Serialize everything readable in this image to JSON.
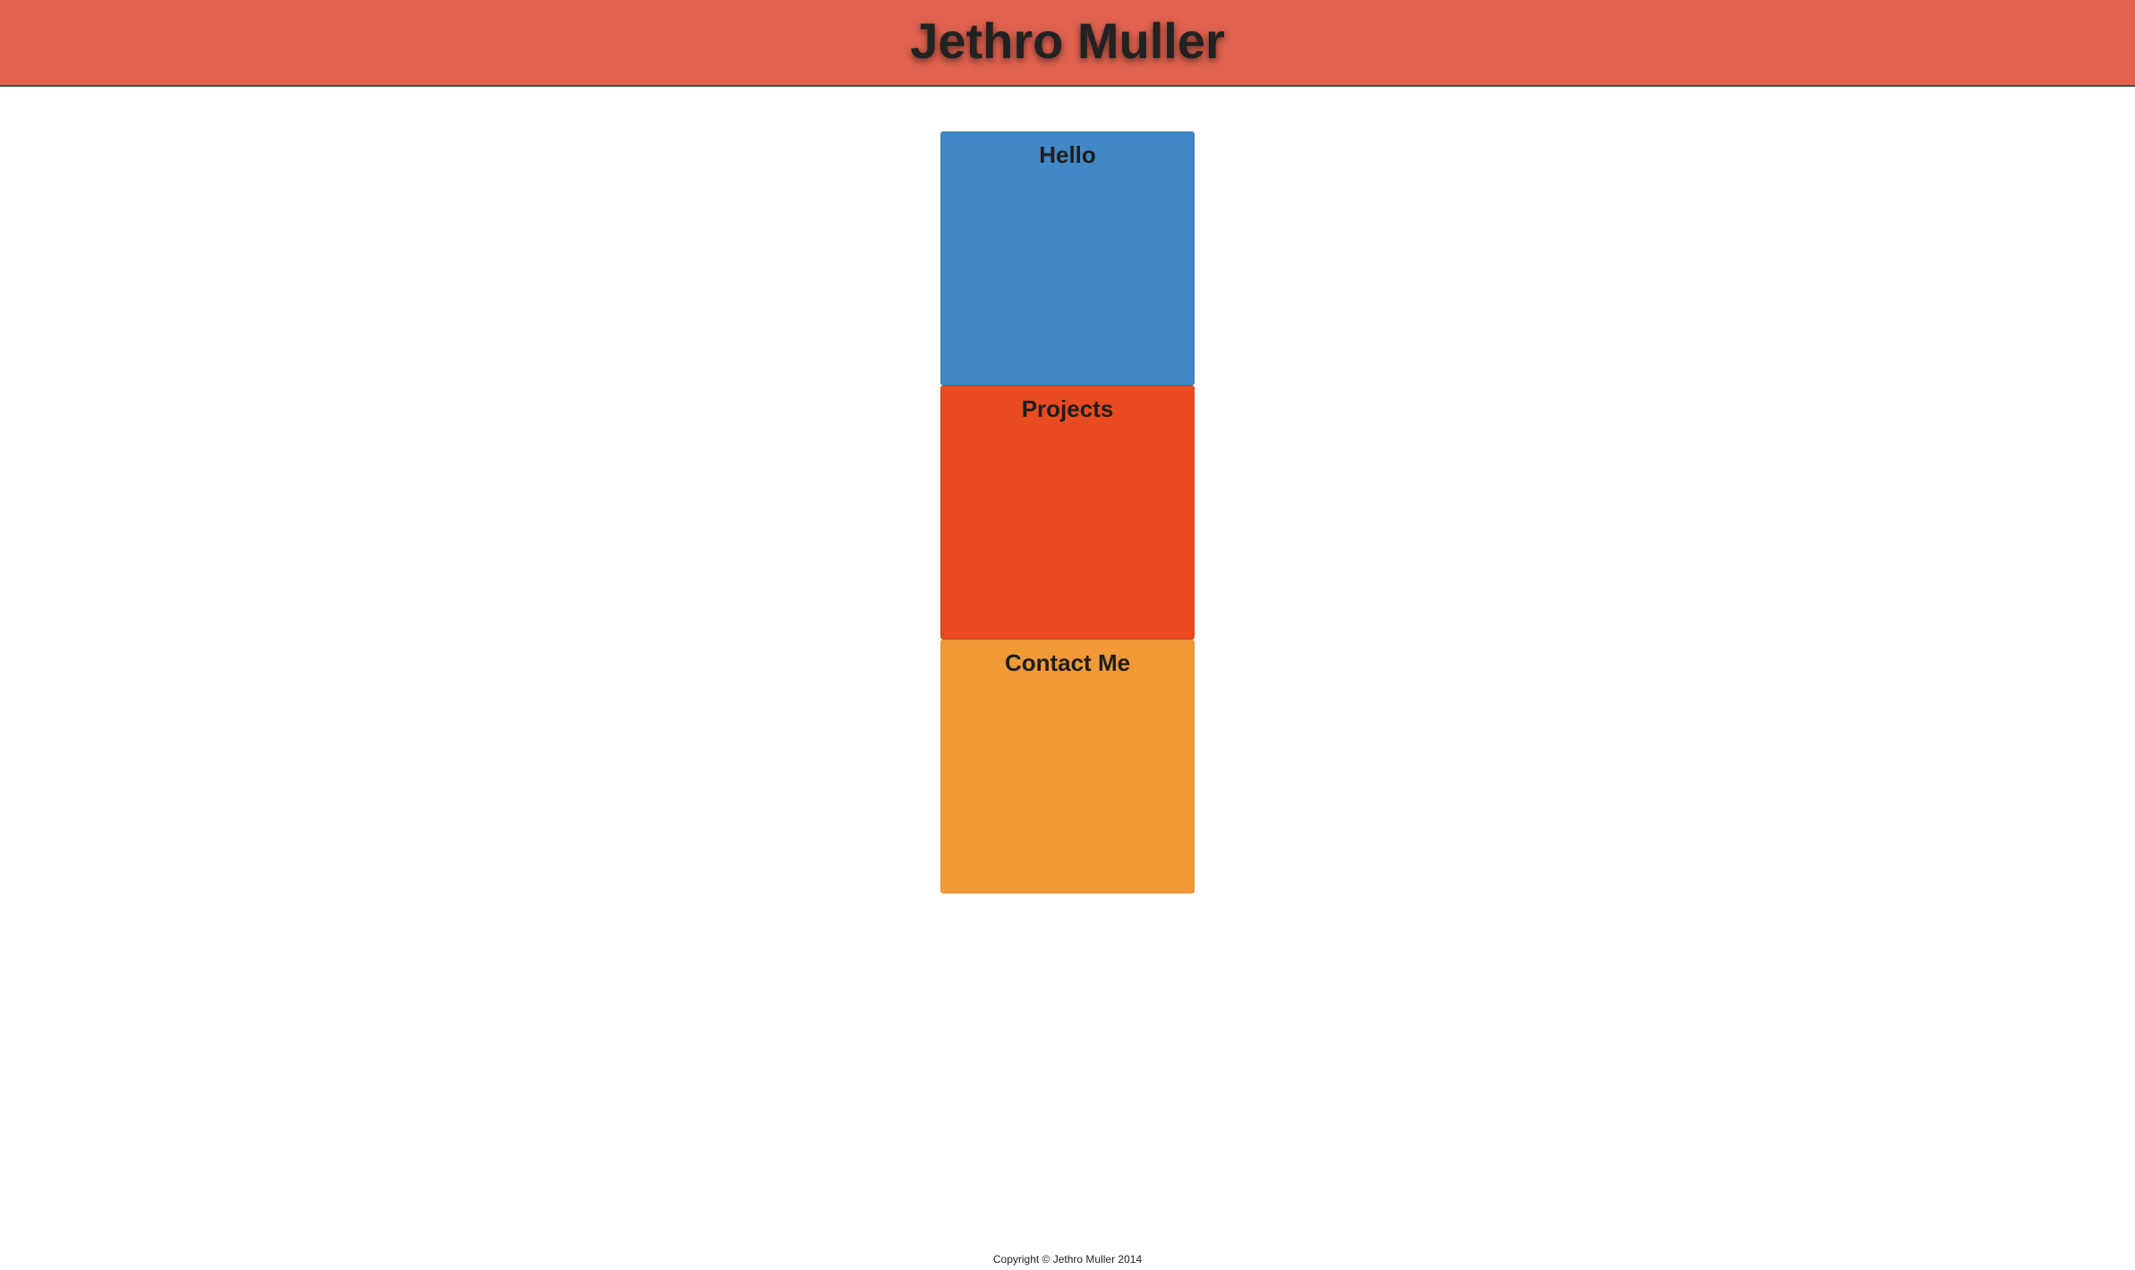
{
  "header": {
    "title": "Jethro Muller"
  },
  "tiles": [
    {
      "label": "Hello",
      "color": "#4188c6"
    },
    {
      "label": "Projects",
      "color": "#e94b20"
    },
    {
      "label": "Contact Me",
      "color": "#f09a38"
    }
  ],
  "footer": {
    "copyright": "Copyright © Jethro Muller 2014"
  },
  "colors": {
    "header_bg": "#e0624f",
    "page_bg": "#ffffff"
  }
}
